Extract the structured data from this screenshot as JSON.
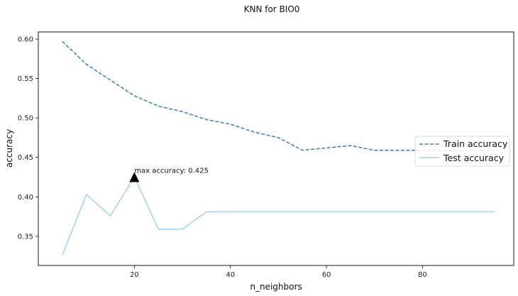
{
  "chart_data": {
    "type": "line",
    "title": "KNN for BIO0",
    "xlabel": "n_neighbors",
    "ylabel": "accuracy",
    "xlim": [
      0,
      99
    ],
    "ylim": [
      0.313,
      0.609
    ],
    "xticks": [
      20,
      40,
      60,
      80
    ],
    "yticks": [
      0.35,
      0.4,
      0.45,
      0.5,
      0.55,
      0.6
    ],
    "grid": false,
    "legend_position": "right",
    "series": [
      {
        "name": "Train accuracy",
        "style": "dashed",
        "color": "#3a7fbf",
        "x": [
          5,
          10,
          15,
          20,
          25,
          30,
          35,
          40,
          45,
          50,
          55,
          60,
          65,
          70,
          75,
          80,
          85,
          90,
          95
        ],
        "y": [
          0.597,
          0.568,
          0.548,
          0.528,
          0.515,
          0.508,
          0.498,
          0.492,
          0.482,
          0.475,
          0.459,
          0.462,
          0.465,
          0.459,
          0.459,
          0.459,
          0.459,
          0.459,
          0.459
        ]
      },
      {
        "name": "Test accuracy",
        "style": "solid",
        "color": "#9fd3ea",
        "x": [
          5,
          10,
          15,
          20,
          25,
          30,
          35,
          40,
          45,
          50,
          55,
          60,
          65,
          70,
          75,
          80,
          85,
          90,
          95
        ],
        "y": [
          0.326,
          0.403,
          0.376,
          0.425,
          0.359,
          0.359,
          0.381,
          0.381,
          0.381,
          0.381,
          0.381,
          0.381,
          0.381,
          0.381,
          0.381,
          0.381,
          0.381,
          0.381,
          0.381
        ]
      }
    ],
    "annotation": {
      "text": "max accuracy: 0.425",
      "x": 20,
      "y": 0.425,
      "marker": "triangle",
      "marker_color": "#000000"
    }
  }
}
